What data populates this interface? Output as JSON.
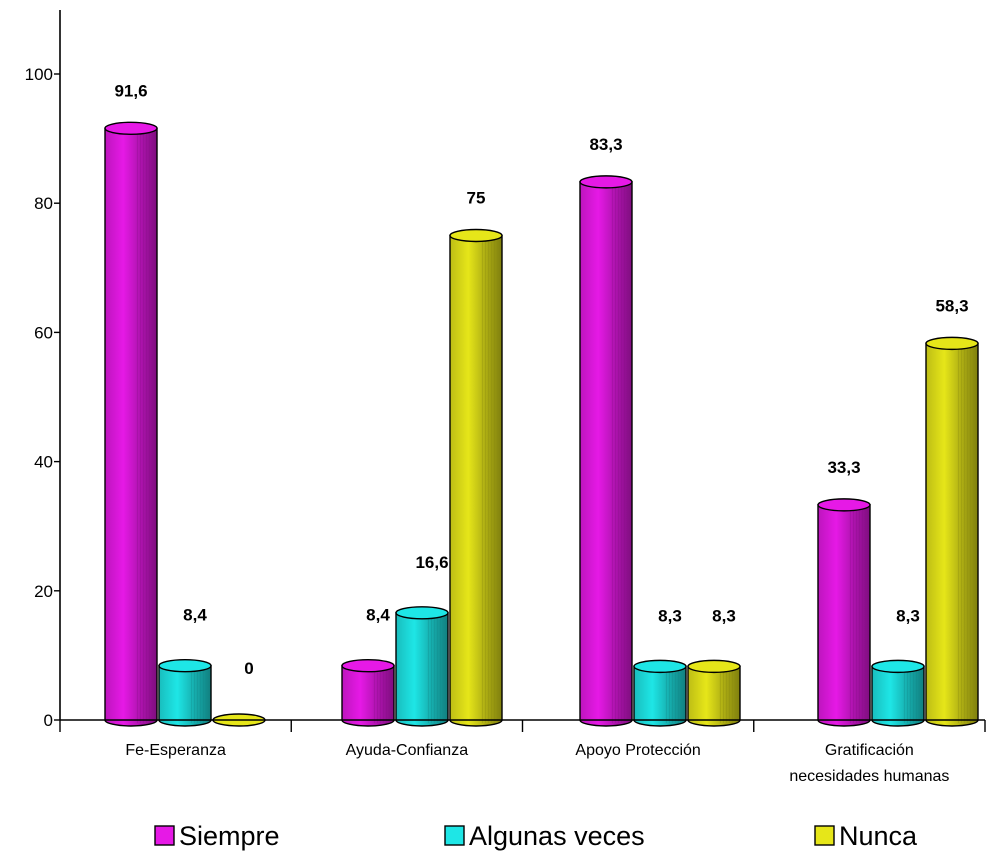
{
  "chart_data": {
    "type": "bar",
    "style": "3d-cylinder",
    "categories": [
      [
        "Fe-Esperanza"
      ],
      [
        "Ayuda-Confianza"
      ],
      [
        "Apoyo Protección"
      ],
      [
        "Gratificación",
        "necesidades humanas"
      ]
    ],
    "series": [
      {
        "name": "Siempre",
        "color": "#e619e6",
        "values": [
          91.6,
          8.4,
          83.3,
          33.3
        ],
        "labels": [
          "91,6",
          "8,4",
          "83,3",
          "33,3"
        ]
      },
      {
        "name": "Algunas veces",
        "color": "#1ee6e6",
        "values": [
          8.4,
          16.6,
          8.3,
          8.3
        ],
        "labels": [
          "8,4",
          "16,6",
          "8,3",
          "8,3"
        ]
      },
      {
        "name": "Nunca",
        "color": "#e6e619",
        "values": [
          0,
          75,
          8.3,
          58.3
        ],
        "labels": [
          "0",
          "75",
          "8,3",
          "58,3"
        ]
      }
    ],
    "yticks": [
      0,
      20,
      40,
      60,
      80,
      100
    ],
    "ylim": [
      0,
      110
    ],
    "grid": false,
    "legend": "bottom"
  }
}
